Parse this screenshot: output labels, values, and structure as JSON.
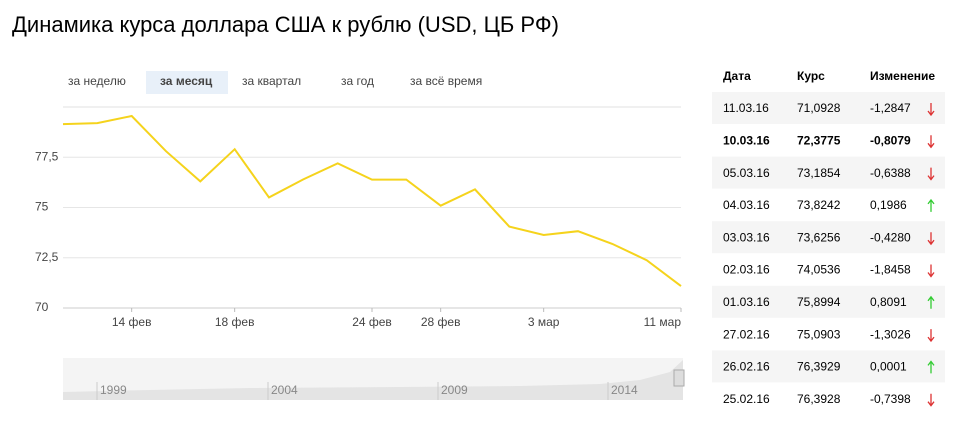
{
  "title": "Динамика курса доллара США к рублю (USD, ЦБ РФ)",
  "tabs": [
    "за неделю",
    "за месяц",
    "за квартал",
    "за год",
    "за всё время"
  ],
  "chart_data": {
    "type": "line",
    "categories": [
      null,
      null,
      "14 фев",
      null,
      null,
      "18 фев",
      null,
      null,
      null,
      "24 фев",
      null,
      "28 фев",
      null,
      null,
      "3 мар",
      null,
      null,
      null,
      "11 мар"
    ],
    "series": [
      {
        "name": "USD",
        "color": "#f5d31c",
        "values": [
          79.15,
          79.2,
          79.55,
          77.8,
          76.3,
          77.9,
          75.5,
          76.4,
          77.2,
          76.39,
          76.39,
          75.09,
          75.9,
          74.05,
          73.63,
          73.82,
          73.19,
          72.38,
          71.09
        ]
      }
    ],
    "ylim": [
      70,
      80
    ],
    "yticks": [
      70,
      {
        "value": 72.5,
        "label": "72,5"
      },
      75,
      {
        "value": 77.5,
        "label": "77,5"
      }
    ],
    "grid": true
  },
  "navigator": {
    "labels": [
      "1999",
      "2004",
      "2009",
      "2014"
    ]
  },
  "table": {
    "header": [
      "Дата",
      "Курс",
      "Изменение"
    ],
    "rows": [
      [
        "11.03.16",
        "71,0928",
        "-1,2847"
      ],
      [
        "10.03.16",
        "72,3775",
        "-0,8079"
      ],
      [
        "05.03.16",
        "73,1854",
        "-0,6388"
      ],
      [
        "04.03.16",
        "73,8242",
        "0,1986"
      ],
      [
        "03.03.16",
        "73,6256",
        "-0,4280"
      ],
      [
        "02.03.16",
        "74,0536",
        "-1,8458"
      ],
      [
        "01.03.16",
        "75,8994",
        "0,8091"
      ],
      [
        "27.02.16",
        "75,0903",
        "-1,3026"
      ],
      [
        "26.02.16",
        "76,3929",
        "0,0001"
      ],
      [
        "25.02.16",
        "76,3928",
        "-0,7398"
      ]
    ]
  }
}
